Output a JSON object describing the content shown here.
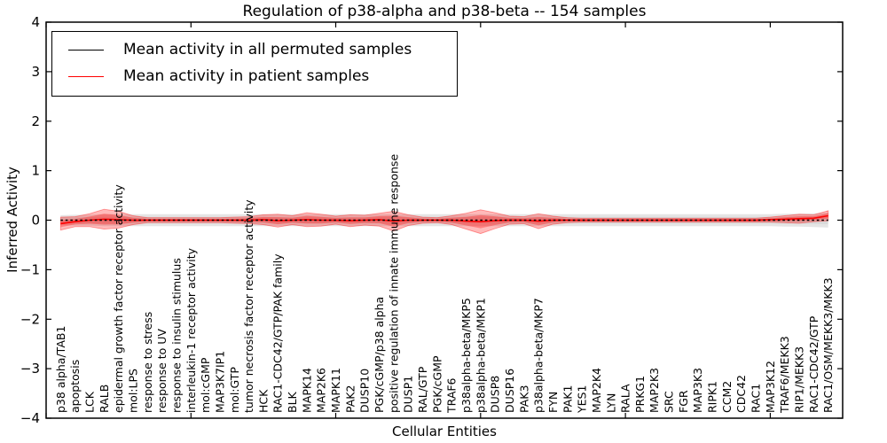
{
  "title": "Regulation of p38-alpha and p38-beta -- 154 samples",
  "axes": {
    "ylabel": "Inferred Activity",
    "xlabel": "Cellular Entities"
  },
  "legend": {
    "items": [
      {
        "label": "Mean activity in all permuted samples",
        "color": "#000000"
      },
      {
        "label": "Mean activity in patient samples",
        "color": "#ff0000"
      }
    ]
  },
  "chart_data": {
    "type": "line",
    "title": "Regulation of p38-alpha and p38-beta -- 154 samples",
    "xlabel": "Cellular Entities",
    "ylabel": "Inferred Activity",
    "ylim": [
      -4,
      4
    ],
    "yticks": [
      4,
      3,
      2,
      1,
      0,
      -1,
      -2,
      -3,
      -4
    ],
    "x_major_tick_units": [
      0,
      10,
      20,
      30,
      40,
      50
    ],
    "grid": false,
    "legend_position": "upper left",
    "band_note": "band arrays are +/- half-widths (std) around each series mean",
    "categories": [
      "p38 alpha/TAB1",
      "apoptosis",
      "LCK",
      "RALB",
      "epidermal growth factor receptor activity",
      "mol:LPS",
      "response to stress",
      "response to UV",
      "response to insulin stimulus",
      "interleukin-1 receptor activity",
      "mol:cGMP",
      "MAP3K7IP1",
      "mol:GTP",
      "tumor necrosis factor receptor activity",
      "HCK",
      "RAC1-CDC42/GTP/PAK family",
      "BLK",
      "MAPK14",
      "MAP2K6",
      "MAPK11",
      "PAK2",
      "DUSP10",
      "PGK/cGMP/p38 alpha",
      "positive regulation of innate immune response",
      "DUSP1",
      "RAL/GTP",
      "PGK/cGMP",
      "TRAF6",
      "p38alpha-beta/MKP5",
      "p38alpha-beta/MKP1",
      "DUSP8",
      "DUSP16",
      "PAK3",
      "p38alpha-beta/MKP7",
      "FYN",
      "PAK1",
      "YES1",
      "MAP2K4",
      "LYN",
      "RALA",
      "PRKG1",
      "MAP2K3",
      "SRC",
      "FGR",
      "MAP3K3",
      "RIPK1",
      "CCM2",
      "CDC42",
      "RAC1",
      "MAP3K12",
      "TRAF6/MEKK3",
      "RIP1/MEKK3",
      "RAC1-CDC42/GTP",
      "RAC1/OSM/MEKK3/MKK3"
    ],
    "series": [
      {
        "name": "Mean activity in all permuted samples",
        "color": "#000000",
        "linestyle": "dashed",
        "band_color": "rgba(0,0,0,0.10)",
        "values": [
          0,
          0,
          0,
          0,
          0,
          0,
          0,
          0,
          0,
          0,
          0,
          0,
          0,
          0,
          0,
          0,
          0,
          0,
          0,
          0,
          0,
          0,
          0,
          0,
          0,
          0,
          0,
          0,
          0,
          0,
          0,
          0,
          0,
          0,
          0,
          0,
          0,
          0,
          0,
          0,
          0,
          0,
          0,
          0,
          0,
          0,
          0,
          0,
          0,
          0,
          0,
          0,
          0,
          0
        ],
        "band": [
          0.1,
          0.11,
          0.11,
          0.12,
          0.12,
          0.12,
          0.12,
          0.12,
          0.12,
          0.12,
          0.12,
          0.12,
          0.12,
          0.12,
          0.12,
          0.12,
          0.12,
          0.12,
          0.12,
          0.12,
          0.12,
          0.12,
          0.12,
          0.12,
          0.12,
          0.12,
          0.12,
          0.12,
          0.12,
          0.12,
          0.12,
          0.12,
          0.12,
          0.12,
          0.12,
          0.12,
          0.12,
          0.12,
          0.12,
          0.12,
          0.12,
          0.12,
          0.12,
          0.12,
          0.12,
          0.12,
          0.12,
          0.12,
          0.12,
          0.12,
          0.13,
          0.13,
          0.14,
          0.15
        ]
      },
      {
        "name": "Mean activity in patient samples",
        "color": "#ff0000",
        "linestyle": "solid",
        "band_color": "rgba(255,0,0,0.27)",
        "values": [
          -0.07,
          -0.03,
          0,
          0.02,
          0.01,
          0,
          0,
          0,
          0,
          0,
          0,
          0,
          0,
          0,
          0.01,
          -0.01,
          0,
          0.01,
          0,
          0,
          -0.01,
          0,
          0.01,
          -0.02,
          0,
          0,
          0,
          0,
          -0.02,
          -0.03,
          -0.01,
          0,
          0,
          -0.02,
          0,
          0,
          0,
          0,
          0,
          0,
          0,
          0,
          0,
          0,
          0,
          0,
          0,
          0,
          0,
          0.01,
          0.02,
          0.03,
          0.04,
          0.09
        ],
        "band": [
          0.13,
          0.1,
          0.13,
          0.2,
          0.17,
          0.09,
          0.05,
          0.05,
          0.05,
          0.05,
          0.05,
          0.05,
          0.06,
          0.07,
          0.1,
          0.13,
          0.09,
          0.14,
          0.12,
          0.08,
          0.12,
          0.1,
          0.13,
          0.2,
          0.11,
          0.06,
          0.05,
          0.09,
          0.16,
          0.24,
          0.16,
          0.08,
          0.07,
          0.15,
          0.08,
          0.05,
          0.04,
          0.04,
          0.04,
          0.04,
          0.04,
          0.04,
          0.04,
          0.04,
          0.04,
          0.04,
          0.04,
          0.04,
          0.04,
          0.05,
          0.07,
          0.09,
          0.07,
          0.1
        ]
      }
    ]
  }
}
